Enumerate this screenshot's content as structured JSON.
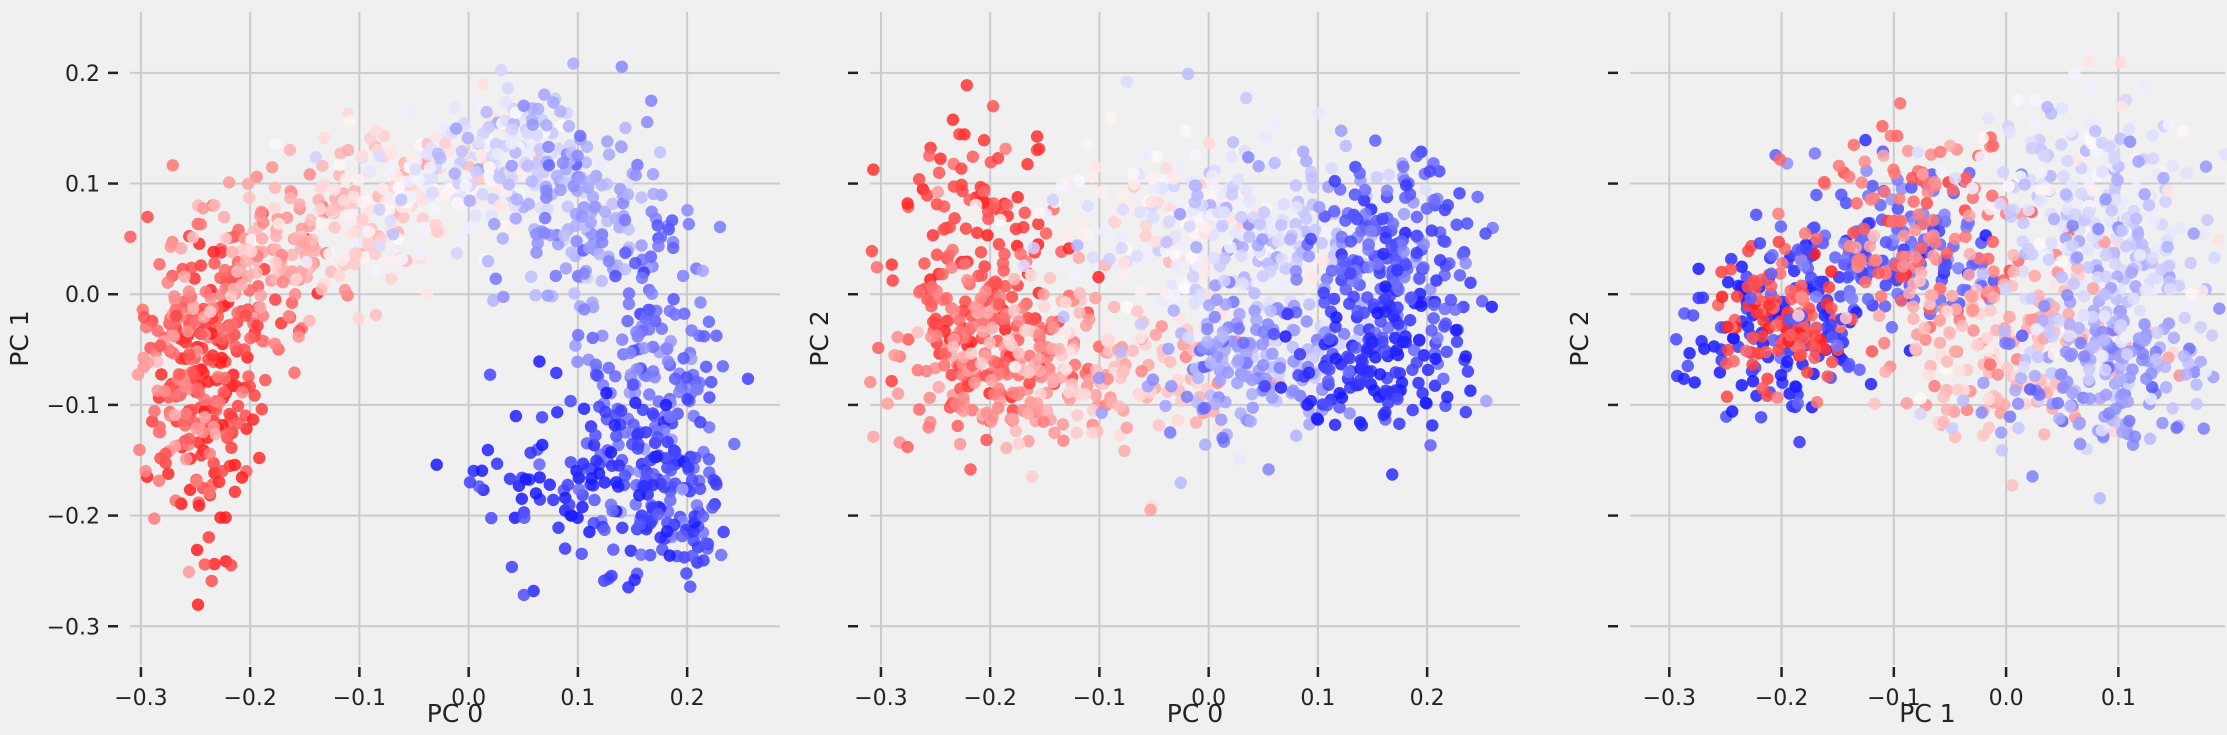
{
  "chart_data": [
    {
      "type": "scatter",
      "x_var": "PC 0",
      "y_var": "PC 1",
      "xlabel": "PC 0",
      "ylabel": "PC 1",
      "xticks": [
        -0.3,
        -0.2,
        -0.1,
        0.0,
        0.1,
        0.2
      ],
      "yticks": [
        -0.3,
        -0.2,
        -0.1,
        0.0,
        0.1,
        0.2
      ],
      "xlim": [
        -0.31,
        0.285
      ],
      "ylim": [
        -0.335,
        0.255
      ],
      "show_yticklabels": true,
      "grid": true,
      "colormap": "bwr (red to blue)",
      "point_count_approx": 2000,
      "clusters": [
        {
          "x": -0.24,
          "y": -0.11,
          "sx": 0.025,
          "sy": 0.065,
          "c": 0.05,
          "n": 120
        },
        {
          "x": -0.22,
          "y": -0.02,
          "sx": 0.035,
          "sy": 0.04,
          "c": 0.12,
          "n": 110
        },
        {
          "x": -0.26,
          "y": -0.08,
          "sx": 0.025,
          "sy": 0.06,
          "c": 0.22,
          "n": 110
        },
        {
          "x": -0.18,
          "y": 0.04,
          "sx": 0.04,
          "sy": 0.035,
          "c": 0.3,
          "n": 100
        },
        {
          "x": -0.1,
          "y": 0.08,
          "sx": 0.04,
          "sy": 0.035,
          "c": 0.4,
          "n": 110
        },
        {
          "x": -0.02,
          "y": 0.11,
          "sx": 0.04,
          "sy": 0.035,
          "c": 0.5,
          "n": 130
        },
        {
          "x": 0.05,
          "y": 0.12,
          "sx": 0.035,
          "sy": 0.03,
          "c": 0.6,
          "n": 130
        },
        {
          "x": 0.11,
          "y": 0.06,
          "sx": 0.035,
          "sy": 0.05,
          "c": 0.7,
          "n": 130
        },
        {
          "x": 0.17,
          "y": -0.06,
          "sx": 0.03,
          "sy": 0.06,
          "c": 0.8,
          "n": 150
        },
        {
          "x": 0.18,
          "y": -0.18,
          "sx": 0.03,
          "sy": 0.05,
          "c": 0.9,
          "n": 140
        },
        {
          "x": 0.09,
          "y": -0.16,
          "sx": 0.05,
          "sy": 0.04,
          "c": 0.96,
          "n": 90
        }
      ]
    },
    {
      "type": "scatter",
      "x_var": "PC 0",
      "y_var": "PC 2",
      "xlabel": "PC 0",
      "ylabel": "PC 2",
      "xticks": [
        -0.3,
        -0.2,
        -0.1,
        0.0,
        0.1,
        0.2
      ],
      "yticks": [
        -0.3,
        -0.2,
        -0.1,
        0.0,
        0.1,
        0.2
      ],
      "xlim": [
        -0.31,
        0.285
      ],
      "ylim": [
        -0.335,
        0.255
      ],
      "show_yticklabels": false,
      "grid": true,
      "colormap": "bwr (red to blue)",
      "point_count_approx": 2000,
      "clusters": [
        {
          "x": -0.21,
          "y": 0.02,
          "sx": 0.04,
          "sy": 0.06,
          "c": 0.08,
          "n": 170
        },
        {
          "x": -0.2,
          "y": -0.06,
          "sx": 0.05,
          "sy": 0.04,
          "c": 0.22,
          "n": 160
        },
        {
          "x": -0.09,
          "y": -0.07,
          "sx": 0.06,
          "sy": 0.04,
          "c": 0.35,
          "n": 150
        },
        {
          "x": -0.05,
          "y": 0.06,
          "sx": 0.06,
          "sy": 0.04,
          "c": 0.5,
          "n": 150
        },
        {
          "x": 0.06,
          "y": 0.05,
          "sx": 0.05,
          "sy": 0.05,
          "c": 0.6,
          "n": 170
        },
        {
          "x": 0.04,
          "y": -0.06,
          "sx": 0.05,
          "sy": 0.04,
          "c": 0.7,
          "n": 170
        },
        {
          "x": 0.17,
          "y": 0.04,
          "sx": 0.035,
          "sy": 0.04,
          "c": 0.85,
          "n": 180
        },
        {
          "x": 0.16,
          "y": -0.06,
          "sx": 0.04,
          "sy": 0.035,
          "c": 0.95,
          "n": 160
        }
      ]
    },
    {
      "type": "scatter",
      "x_var": "PC 1",
      "y_var": "PC 2",
      "xlabel": "PC 1",
      "ylabel": "PC 2",
      "xticks": [
        -0.3,
        -0.2,
        -0.1,
        0.0,
        0.1
      ],
      "yticks": [
        -0.3,
        -0.2,
        -0.1,
        0.0,
        0.1,
        0.2
      ],
      "xlim": [
        -0.335,
        0.195
      ],
      "ylim": [
        -0.335,
        0.255
      ],
      "show_yticklabels": false,
      "grid": true,
      "colormap": "bwr (red to blue)",
      "point_count_approx": 2000,
      "clusters": [
        {
          "x": -0.2,
          "y": -0.04,
          "sx": 0.04,
          "sy": 0.04,
          "c": 0.95,
          "n": 150
        },
        {
          "x": -0.2,
          "y": -0.02,
          "sx": 0.03,
          "sy": 0.03,
          "c": 0.1,
          "n": 110
        },
        {
          "x": -0.1,
          "y": 0.04,
          "sx": 0.05,
          "sy": 0.04,
          "c": 0.85,
          "n": 160
        },
        {
          "x": -0.08,
          "y": 0.06,
          "sx": 0.05,
          "sy": 0.04,
          "c": 0.2,
          "n": 130
        },
        {
          "x": 0.07,
          "y": 0.09,
          "sx": 0.05,
          "sy": 0.05,
          "c": 0.55,
          "n": 170
        },
        {
          "x": 0.0,
          "y": -0.05,
          "sx": 0.06,
          "sy": 0.04,
          "c": 0.35,
          "n": 170
        },
        {
          "x": 0.08,
          "y": -0.07,
          "sx": 0.05,
          "sy": 0.04,
          "c": 0.7,
          "n": 170
        },
        {
          "x": 0.1,
          "y": 0.02,
          "sx": 0.04,
          "sy": 0.05,
          "c": 0.62,
          "n": 140
        }
      ]
    }
  ]
}
